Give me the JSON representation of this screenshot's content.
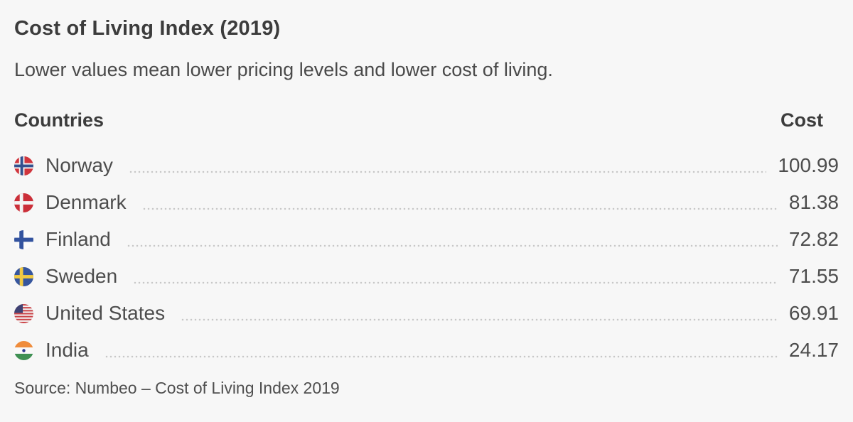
{
  "colors": {
    "background": "#f7f7f7",
    "title_text": "#3c3c3c",
    "body_text": "#4d4d4d",
    "leader_dots": "#c8c8c8"
  },
  "header": {
    "title": "Cost of Living Index (2019)",
    "subtitle": "Lower values mean lower pricing levels and lower cost of living."
  },
  "table": {
    "columns": [
      "Countries",
      "Cost"
    ],
    "rows": [
      {
        "country": "Norway",
        "flag_icon": "norway-flag-icon",
        "cost": "100.99"
      },
      {
        "country": "Denmark",
        "flag_icon": "denmark-flag-icon",
        "cost": "81.38"
      },
      {
        "country": "Finland",
        "flag_icon": "finland-flag-icon",
        "cost": "72.82"
      },
      {
        "country": "Sweden",
        "flag_icon": "sweden-flag-icon",
        "cost": "71.55"
      },
      {
        "country": "United States",
        "flag_icon": "united-states-flag-icon",
        "cost": "69.91"
      },
      {
        "country": "India",
        "flag_icon": "india-flag-icon",
        "cost": "24.17"
      }
    ]
  },
  "footer": {
    "source": "Source: Numbeo – Cost of Living Index 2019"
  },
  "chart_data": {
    "type": "table",
    "title": "Cost of Living Index (2019)",
    "subtitle": "Lower values mean lower pricing levels and lower cost of living.",
    "columns": [
      "Countries",
      "Cost"
    ],
    "categories": [
      "Norway",
      "Denmark",
      "Finland",
      "Sweden",
      "United States",
      "India"
    ],
    "values": [
      100.99,
      81.38,
      72.82,
      71.55,
      69.91,
      24.17
    ],
    "source": "Source: Numbeo – Cost of Living Index 2019",
    "layout": "ranked list with dotted leader lines, values right-aligned, circular flag icons per row"
  }
}
